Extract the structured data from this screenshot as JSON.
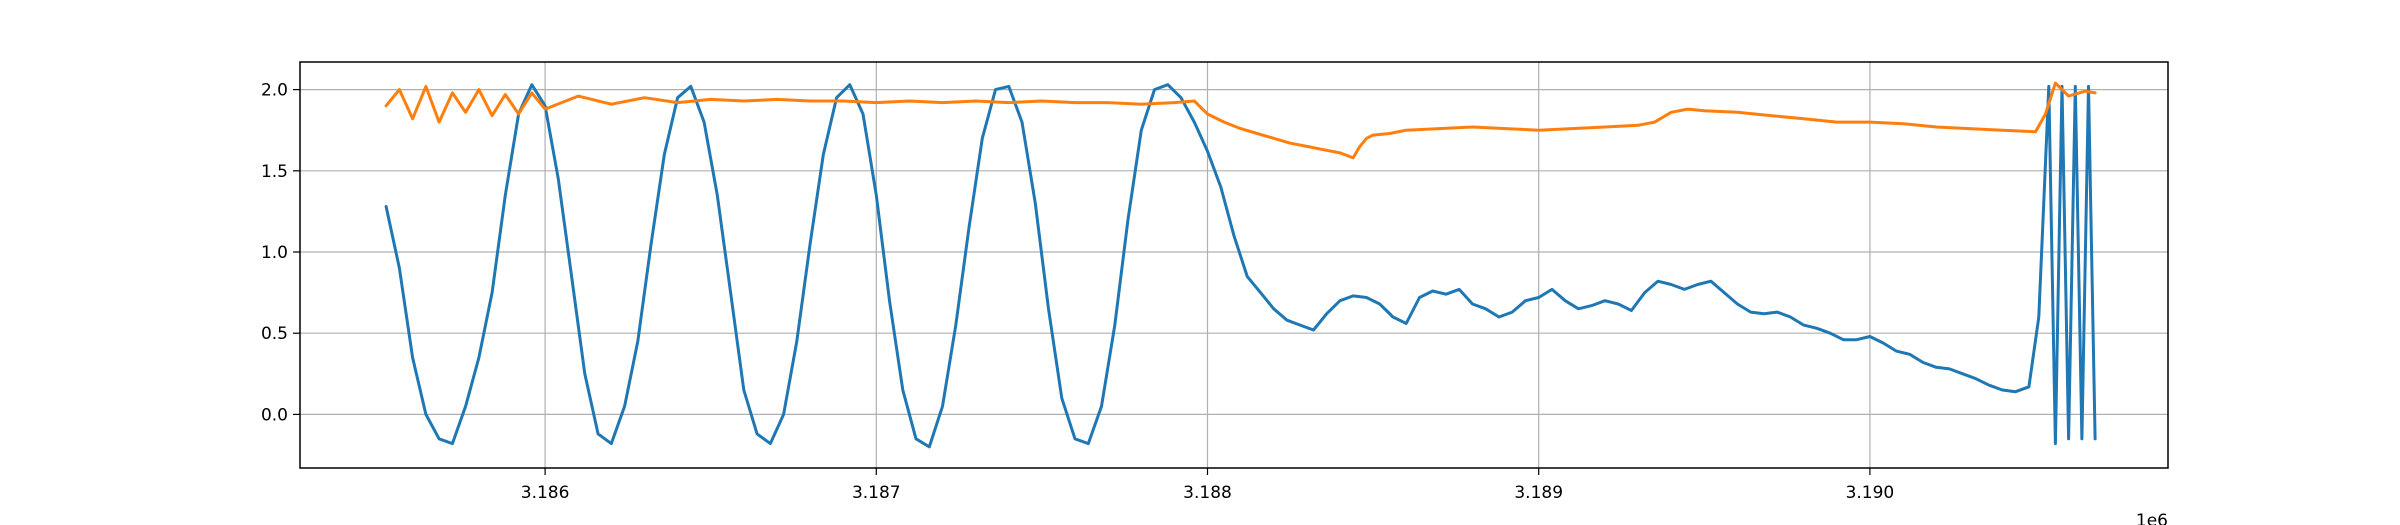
{
  "chart_data": {
    "type": "line",
    "title": "",
    "xlabel": "",
    "ylabel": "",
    "x_offset_label": "1e6",
    "xlim": [
      3185260,
      3190900
    ],
    "ylim": [
      -0.33,
      2.17
    ],
    "xticks": [
      3186000,
      3187000,
      3188000,
      3189000,
      3190000
    ],
    "xtick_labels": [
      "3.186",
      "3.187",
      "3.188",
      "3.189",
      "3.190"
    ],
    "yticks": [
      0.0,
      0.5,
      1.0,
      1.5,
      2.0
    ],
    "ytick_labels": [
      "0.0",
      "0.5",
      "1.0",
      "1.5",
      "2.0"
    ],
    "grid": true,
    "legend": false,
    "series": [
      {
        "color": "#1f77b4",
        "x": [
          3185520,
          3185560,
          3185600,
          3185640,
          3185680,
          3185720,
          3185760,
          3185800,
          3185840,
          3185880,
          3185920,
          3185960,
          3186000,
          3186040,
          3186080,
          3186120,
          3186160,
          3186200,
          3186240,
          3186280,
          3186320,
          3186360,
          3186400,
          3186440,
          3186480,
          3186520,
          3186560,
          3186600,
          3186640,
          3186680,
          3186720,
          3186760,
          3186800,
          3186840,
          3186880,
          3186920,
          3186960,
          3187000,
          3187040,
          3187080,
          3187120,
          3187160,
          3187200,
          3187240,
          3187280,
          3187320,
          3187360,
          3187400,
          3187440,
          3187480,
          3187520,
          3187560,
          3187600,
          3187640,
          3187680,
          3187720,
          3187760,
          3187800,
          3187840,
          3187880,
          3187920,
          3187960,
          3188000,
          3188040,
          3188080,
          3188120,
          3188160,
          3188200,
          3188240,
          3188280,
          3188320,
          3188360,
          3188400,
          3188440,
          3188480,
          3188520,
          3188560,
          3188600,
          3188640,
          3188680,
          3188720,
          3188760,
          3188800,
          3188840,
          3188880,
          3188920,
          3188960,
          3189000,
          3189040,
          3189080,
          3189120,
          3189160,
          3189200,
          3189240,
          3189280,
          3189320,
          3189360,
          3189400,
          3189440,
          3189480,
          3189520,
          3189560,
          3189600,
          3189640,
          3189680,
          3189720,
          3189760,
          3189800,
          3189840,
          3189880,
          3189920,
          3189960,
          3190000,
          3190040,
          3190080,
          3190120,
          3190160,
          3190200,
          3190240,
          3190280,
          3190320,
          3190360,
          3190400,
          3190440,
          3190480,
          3190510,
          3190540,
          3190560,
          3190580,
          3190600,
          3190620,
          3190640,
          3190660,
          3190680
        ],
        "y": [
          1.28,
          0.9,
          0.35,
          0.0,
          -0.15,
          -0.18,
          0.05,
          0.35,
          0.75,
          1.35,
          1.85,
          2.03,
          1.9,
          1.45,
          0.85,
          0.25,
          -0.12,
          -0.18,
          0.05,
          0.45,
          1.05,
          1.6,
          1.95,
          2.02,
          1.8,
          1.35,
          0.75,
          0.15,
          -0.12,
          -0.18,
          0.0,
          0.45,
          1.05,
          1.6,
          1.95,
          2.03,
          1.85,
          1.35,
          0.7,
          0.15,
          -0.15,
          -0.2,
          0.05,
          0.55,
          1.15,
          1.7,
          2.0,
          2.02,
          1.8,
          1.3,
          0.65,
          0.1,
          -0.15,
          -0.18,
          0.05,
          0.55,
          1.2,
          1.75,
          2.0,
          2.03,
          1.95,
          1.8,
          1.62,
          1.4,
          1.1,
          0.85,
          0.75,
          0.65,
          0.58,
          0.55,
          0.52,
          0.62,
          0.7,
          0.73,
          0.72,
          0.68,
          0.6,
          0.56,
          0.72,
          0.76,
          0.74,
          0.77,
          0.68,
          0.65,
          0.6,
          0.63,
          0.7,
          0.72,
          0.77,
          0.7,
          0.65,
          0.67,
          0.7,
          0.68,
          0.64,
          0.75,
          0.82,
          0.8,
          0.77,
          0.8,
          0.82,
          0.75,
          0.68,
          0.63,
          0.62,
          0.63,
          0.6,
          0.55,
          0.53,
          0.5,
          0.46,
          0.46,
          0.48,
          0.44,
          0.39,
          0.37,
          0.32,
          0.29,
          0.28,
          0.25,
          0.22,
          0.18,
          0.15,
          0.14,
          0.17,
          0.6,
          2.02,
          -0.18,
          2.02,
          -0.15,
          2.02,
          -0.15,
          2.02,
          -0.15
        ]
      },
      {
        "color": "#ff7f0e",
        "x": [
          3185520,
          3185560,
          3185600,
          3185640,
          3185680,
          3185720,
          3185760,
          3185800,
          3185840,
          3185880,
          3185920,
          3185960,
          3186000,
          3186100,
          3186200,
          3186300,
          3186400,
          3186500,
          3186600,
          3186700,
          3186800,
          3186900,
          3187000,
          3187100,
          3187200,
          3187300,
          3187400,
          3187500,
          3187600,
          3187700,
          3187800,
          3187900,
          3187960,
          3188000,
          3188050,
          3188100,
          3188150,
          3188200,
          3188250,
          3188300,
          3188350,
          3188400,
          3188440,
          3188460,
          3188480,
          3188500,
          3188550,
          3188600,
          3188700,
          3188800,
          3188900,
          3189000,
          3189100,
          3189200,
          3189300,
          3189350,
          3189400,
          3189450,
          3189500,
          3189600,
          3189700,
          3189800,
          3189900,
          3190000,
          3190100,
          3190200,
          3190300,
          3190400,
          3190500,
          3190530,
          3190560,
          3190600,
          3190650,
          3190680
        ],
        "y": [
          1.9,
          2.0,
          1.82,
          2.02,
          1.8,
          1.98,
          1.86,
          2.0,
          1.84,
          1.97,
          1.85,
          1.98,
          1.88,
          1.96,
          1.91,
          1.95,
          1.92,
          1.94,
          1.93,
          1.94,
          1.93,
          1.93,
          1.92,
          1.93,
          1.92,
          1.93,
          1.92,
          1.93,
          1.92,
          1.92,
          1.91,
          1.92,
          1.93,
          1.85,
          1.8,
          1.76,
          1.73,
          1.7,
          1.67,
          1.65,
          1.63,
          1.61,
          1.58,
          1.65,
          1.7,
          1.72,
          1.73,
          1.75,
          1.76,
          1.77,
          1.76,
          1.75,
          1.76,
          1.77,
          1.78,
          1.8,
          1.86,
          1.88,
          1.87,
          1.86,
          1.84,
          1.82,
          1.8,
          1.8,
          1.79,
          1.77,
          1.76,
          1.75,
          1.74,
          1.85,
          2.04,
          1.96,
          1.99,
          1.98
        ]
      }
    ]
  }
}
